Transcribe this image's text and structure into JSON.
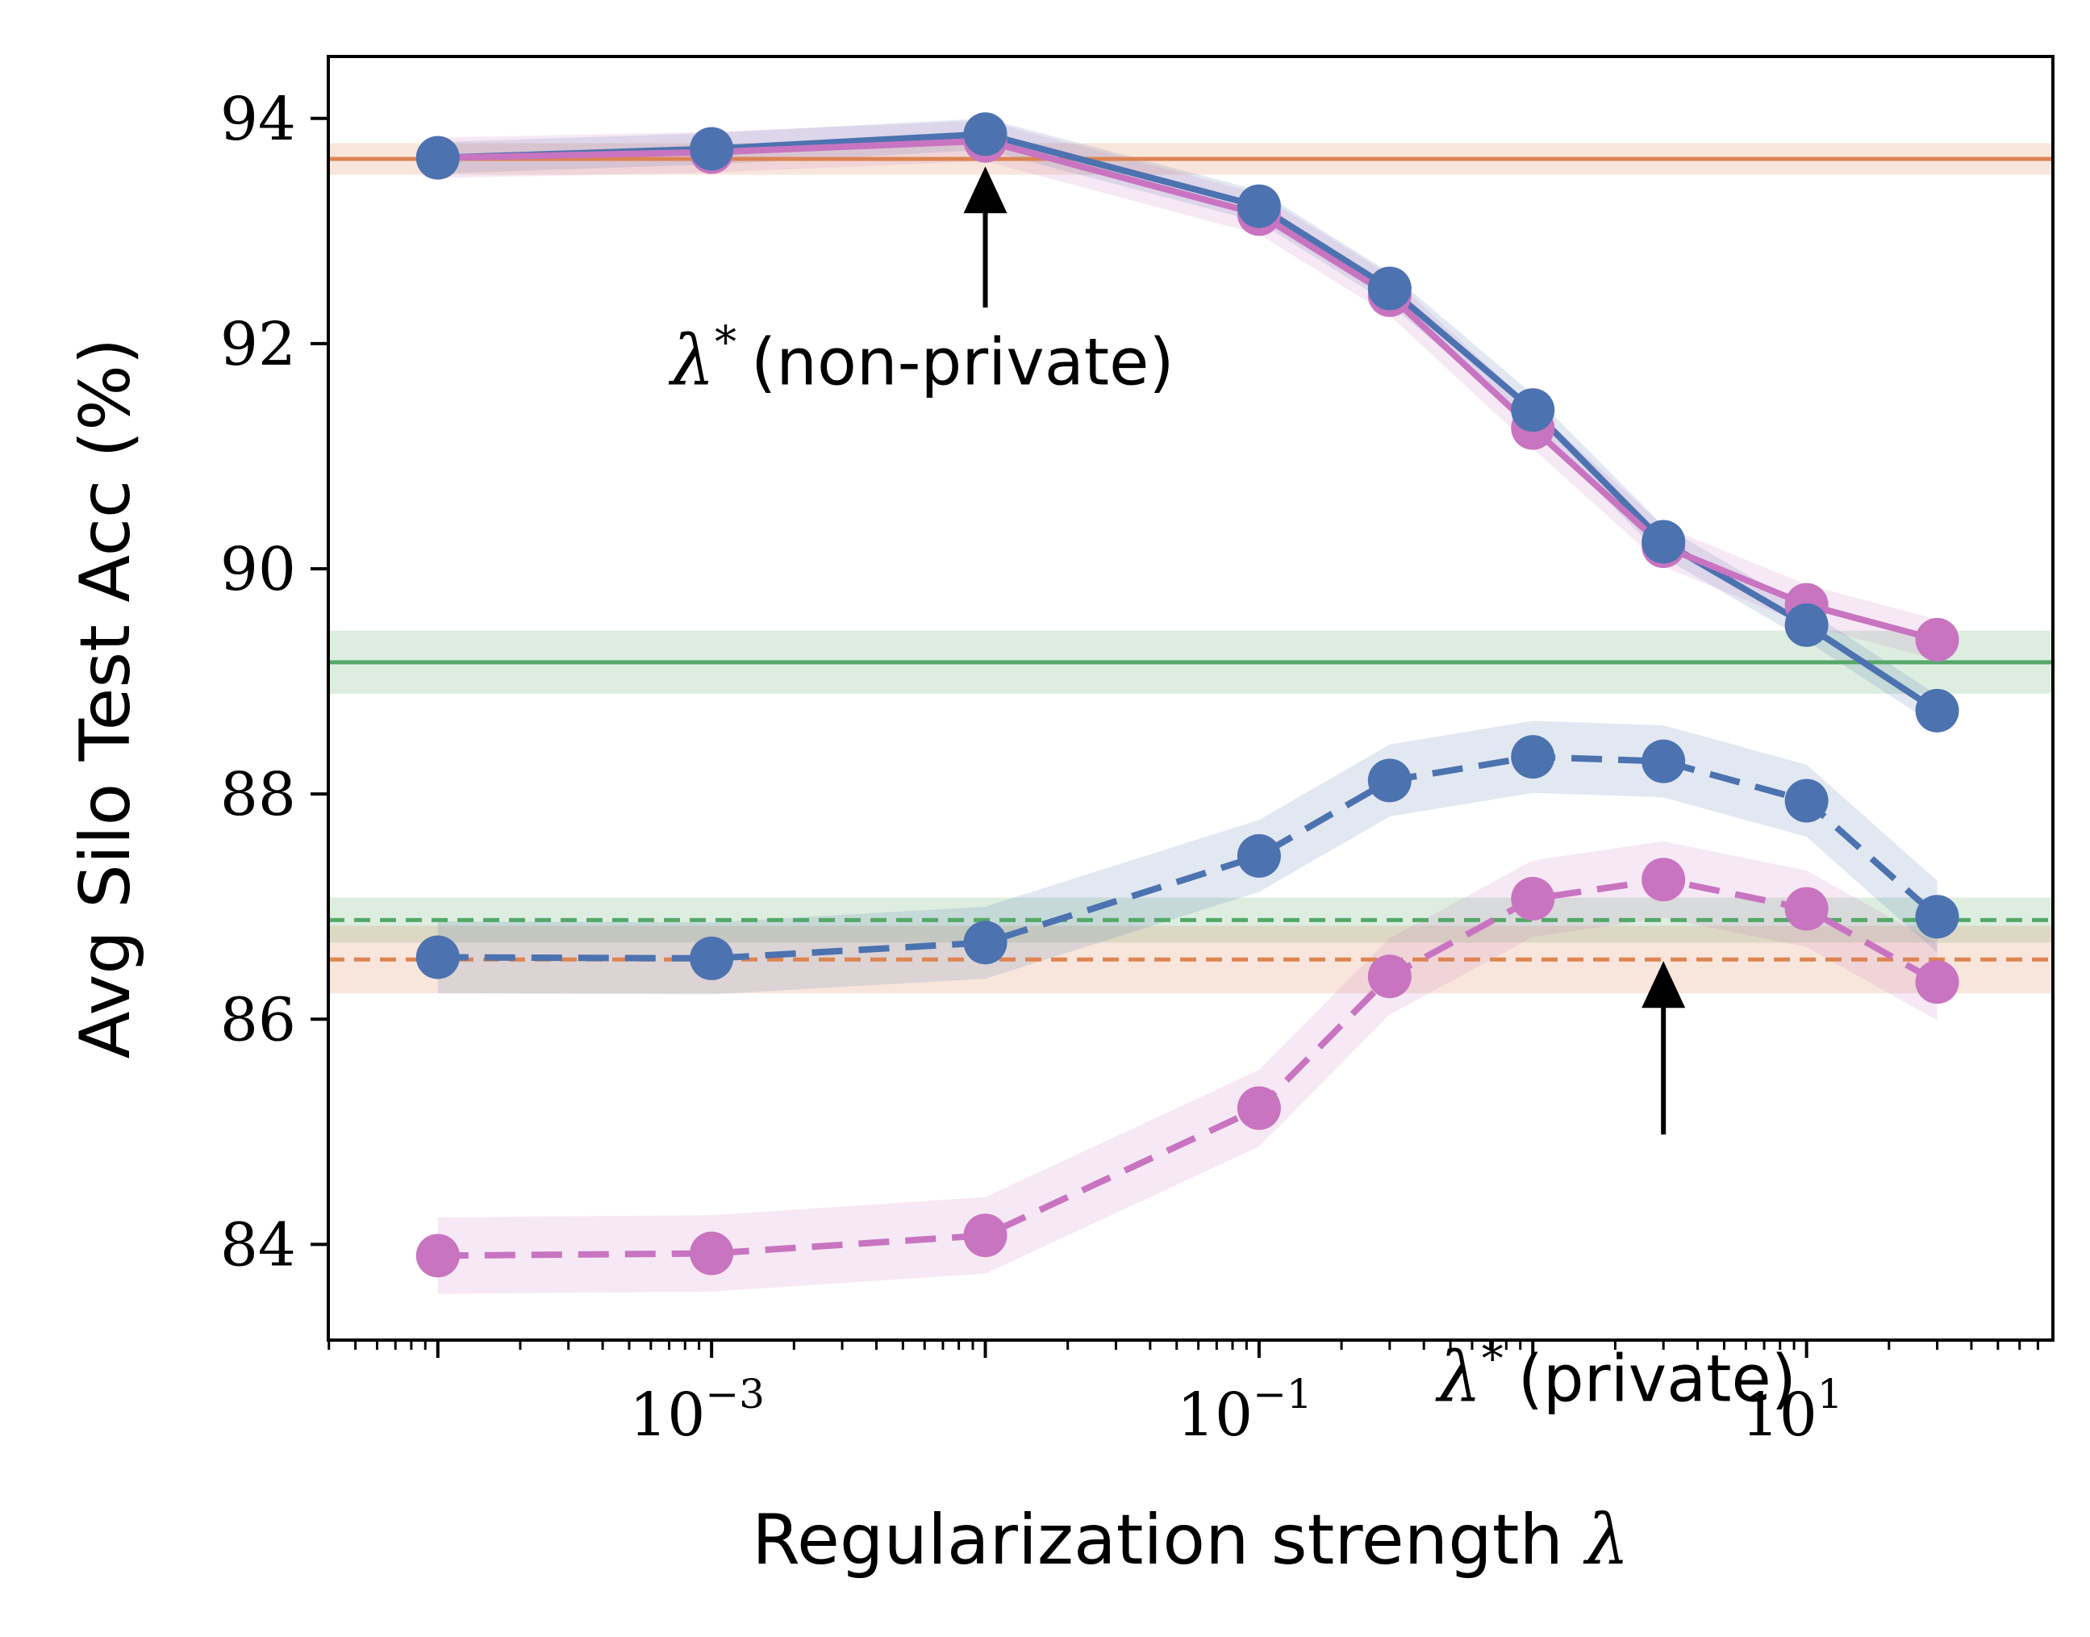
{
  "chart_data": {
    "type": "line",
    "xlabel": "Regularization strength",
    "xlabel_symbol": "λ",
    "ylabel": "Avg Silo Test Acc (%)",
    "xscale": "log",
    "xlim": [
      3.98e-05,
      79.4
    ],
    "ylim": [
      83.15,
      94.55
    ],
    "x_ticks": [
      {
        "base": "10",
        "exp": "−3",
        "value": 0.001
      },
      {
        "base": "10",
        "exp": "−1",
        "value": 0.1
      },
      {
        "base": "10",
        "exp": "1",
        "value": 10
      }
    ],
    "y_ticks": [
      84,
      86,
      88,
      90,
      92,
      94
    ],
    "grid": false,
    "legend": "none",
    "x": [
      0.0001,
      0.001,
      0.01,
      0.1,
      0.3,
      1,
      3,
      10,
      30
    ],
    "series": [
      {
        "color": "#4c72b0",
        "style": "solid",
        "marker": "circle",
        "band": 0.14,
        "values": [
          93.65,
          93.73,
          93.86,
          93.22,
          92.49,
          91.41,
          90.24,
          89.5,
          88.74
        ]
      },
      {
        "color": "#c874c0",
        "style": "solid",
        "marker": "circle",
        "band": 0.18,
        "values": [
          93.65,
          93.7,
          93.8,
          93.15,
          92.43,
          91.25,
          90.2,
          89.68,
          89.37
        ]
      },
      {
        "color": "#4c72b0",
        "style": "dashed",
        "marker": "circle",
        "band": 0.32,
        "values": [
          86.55,
          86.54,
          86.68,
          87.45,
          88.12,
          88.33,
          88.29,
          87.94,
          86.91
        ]
      },
      {
        "color": "#c874c0",
        "style": "dashed",
        "marker": "circle",
        "band": 0.34,
        "values": [
          83.9,
          83.92,
          84.08,
          85.21,
          86.38,
          87.07,
          87.24,
          86.98,
          86.33
        ]
      }
    ],
    "reference_lines": [
      {
        "color": "#dd8452",
        "style": "solid",
        "y": 93.64,
        "band": 0.14
      },
      {
        "color": "#55a868",
        "style": "solid",
        "y": 89.17,
        "band": 0.28
      },
      {
        "color": "#55a868",
        "style": "dashed",
        "y": 86.88,
        "band": 0.2
      },
      {
        "color": "#dd8452",
        "style": "dashed",
        "y": 86.53,
        "band": 0.3
      }
    ],
    "annotations": [
      {
        "symbol": "λ",
        "sup": "*",
        "text": "(non-private)",
        "x": 0.01,
        "y": 93.86
      },
      {
        "symbol": "λ",
        "sup": "*",
        "text": "(private)",
        "x": 3,
        "y": 86.53
      }
    ]
  }
}
